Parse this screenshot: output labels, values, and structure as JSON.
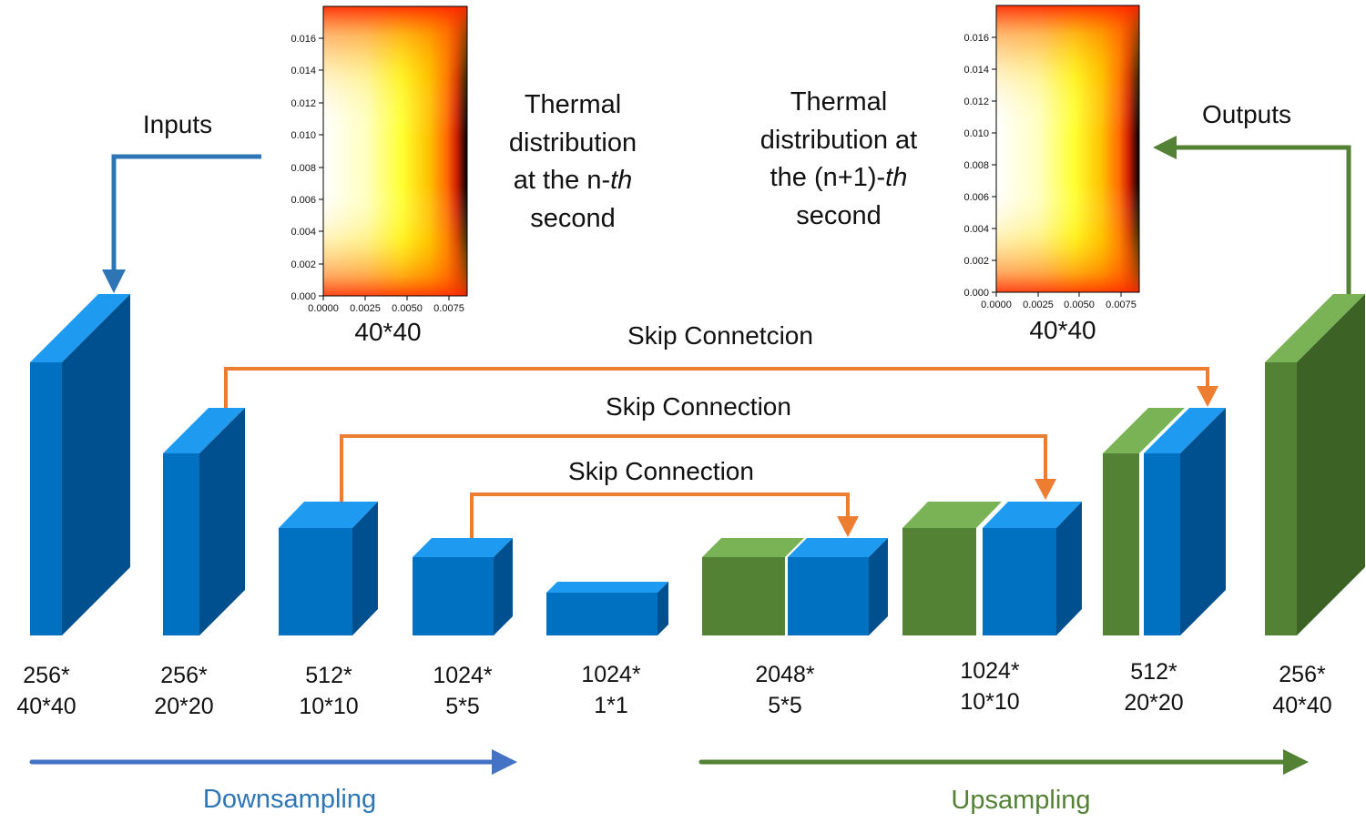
{
  "colors": {
    "encoder_front": "#0070c0",
    "encoder_side": "#00508f",
    "encoder_top": "#1e9bf0",
    "decoder_front": "#548235",
    "decoder_side": "#3d6226",
    "decoder_top": "#7ab356",
    "skip_arrow": "#ed7d31",
    "input_arrow": "#2e75b6",
    "output_arrow": "#548235",
    "downsampling": "#4472c4",
    "upsampling": "#548235"
  },
  "labels": {
    "inputs": "Inputs",
    "outputs": "Outputs",
    "thermal_in": [
      "Thermal",
      "distribution",
      "at the n-",
      "th",
      "second"
    ],
    "thermal_out": [
      "Thermal",
      "distribution at",
      "the (n+1)-",
      "th",
      "second"
    ],
    "size_in": "40*40",
    "size_out": "40*40",
    "skip1": "Skip Connetcion",
    "skip2": "Skip Connection",
    "skip3": "Skip Connection",
    "downsampling": "Downsampling",
    "upsampling": "Upsampling"
  },
  "heatmaps": {
    "y_ticks": [
      "0.016",
      "0.014",
      "0.012",
      "0.010",
      "0.008",
      "0.006",
      "0.004",
      "0.002",
      "0.000"
    ],
    "x_ticks": [
      "0.0000",
      "0.0025",
      "0.0050",
      "0.0075"
    ]
  },
  "blocks": [
    {
      "line1": "256*",
      "line2": "40*40"
    },
    {
      "line1": "256*",
      "line2": "20*20"
    },
    {
      "line1": "512*",
      "line2": "10*10"
    },
    {
      "line1": "1024*",
      "line2": "5*5"
    },
    {
      "line1": "1024*",
      "line2": "1*1"
    },
    {
      "line1": "2048*",
      "line2": "5*5"
    },
    {
      "line1": "1024*",
      "line2": "10*10"
    },
    {
      "line1": "512*",
      "line2": "20*20"
    },
    {
      "line1": "256*",
      "line2": "40*40"
    }
  ]
}
